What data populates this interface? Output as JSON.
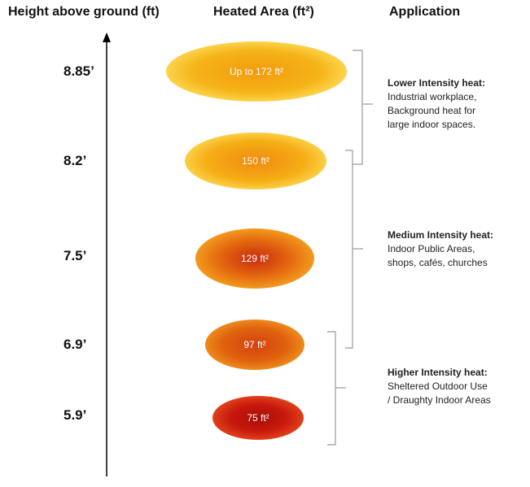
{
  "headers": {
    "height": "Height above ground (ft)",
    "area": "Heated Area (ft²)",
    "application": "Application"
  },
  "levels": [
    {
      "height": "8.85’",
      "area": "Up to 172 ft²"
    },
    {
      "height": "8.2’",
      "area": "150 ft²"
    },
    {
      "height": "7.5’",
      "area": "129 ft²"
    },
    {
      "height": "6.9’",
      "area": "97 ft²"
    },
    {
      "height": "5.9’",
      "area": "75 ft²"
    }
  ],
  "applications": [
    {
      "title": "Lower Intensity heat:",
      "lines": [
        "Industrial workplace,",
        "Background heat for",
        "large indoor spaces."
      ]
    },
    {
      "title": "Medium Intensity heat:",
      "lines": [
        "Indoor Public Areas,",
        "shops, cafés, churches"
      ]
    },
    {
      "title": "Higher Intensity heat:",
      "lines": [
        "Sheltered Outdoor Use",
        "/ Draughty Indoor Areas"
      ]
    }
  ],
  "colors": {
    "lower": "#f5b216",
    "medium": "#e06a10",
    "higher": "#c81c0c"
  }
}
